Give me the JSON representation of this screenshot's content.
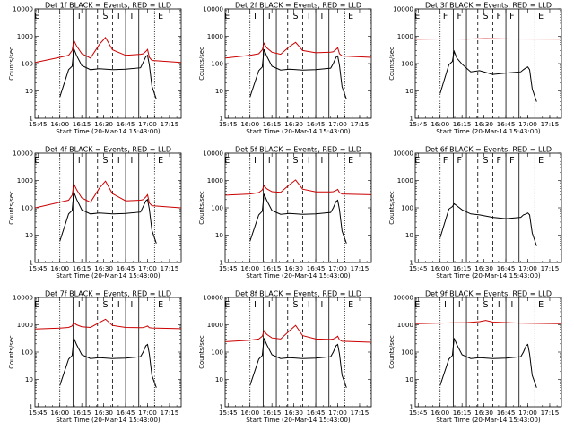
{
  "x_label": "Start Time (20-Mar-14 15:43:00)",
  "y_label": "Counts/sec",
  "x_ticks": [
    "15:45",
    "16:00",
    "16:15",
    "16:30",
    "16:45",
    "17:00",
    "17:15"
  ],
  "y_ticks": [
    "1",
    "10",
    "100",
    "1000",
    "10000"
  ],
  "chart_data": [
    {
      "type": "line",
      "title": "Det 1f BLACK = Events, RED = LLD",
      "flags": [
        "E",
        "I",
        "I",
        "S",
        "I",
        "I",
        "E"
      ],
      "xlim": [
        "15:43",
        "17:23"
      ],
      "ylim": [
        1,
        10000
      ],
      "ylog": true,
      "series": [
        {
          "name": "BLACK = Events",
          "color": "#000000",
          "x": [
            16.0,
            16.1,
            16.14,
            16.16,
            16.19,
            16.25,
            16.35,
            16.45,
            16.6,
            16.75,
            16.92,
            16.95,
            16.98,
            17.0,
            17.02,
            17.05,
            17.1
          ],
          "y": [
            6,
            60,
            80,
            350,
            200,
            85,
            60,
            65,
            60,
            62,
            70,
            110,
            180,
            200,
            90,
            15,
            5
          ]
        },
        {
          "name": "RED = LLD",
          "color": "#cc0000",
          "x": [
            15.72,
            16.0,
            16.1,
            16.14,
            16.16,
            16.19,
            16.25,
            16.35,
            16.45,
            16.52,
            16.6,
            16.75,
            16.92,
            16.95,
            16.98,
            17.0,
            17.02,
            17.05,
            17.38
          ],
          "y": [
            110,
            170,
            200,
            300,
            700,
            450,
            230,
            160,
            500,
            900,
            320,
            200,
            220,
            230,
            280,
            330,
            170,
            130,
            110
          ]
        }
      ]
    },
    {
      "type": "line",
      "title": "Det 2f BLACK = Events, RED = LLD",
      "flags": [
        "E",
        "I",
        "I",
        "S",
        "I",
        "I",
        "E"
      ],
      "xlim": [
        "15:43",
        "17:23"
      ],
      "ylim": [
        1,
        10000
      ],
      "ylog": true,
      "series": [
        {
          "name": "BLACK = Events",
          "color": "#000000",
          "x": [
            16.0,
            16.1,
            16.14,
            16.16,
            16.19,
            16.25,
            16.35,
            16.45,
            16.6,
            16.75,
            16.92,
            16.95,
            16.98,
            17.0,
            17.02,
            17.05,
            17.1
          ],
          "y": [
            6,
            55,
            75,
            330,
            190,
            80,
            58,
            62,
            58,
            60,
            68,
            100,
            170,
            190,
            85,
            14,
            5
          ]
        },
        {
          "name": "RED = LLD",
          "color": "#cc0000",
          "x": [
            15.72,
            16.0,
            16.1,
            16.14,
            16.16,
            16.19,
            16.25,
            16.35,
            16.45,
            16.52,
            16.6,
            16.75,
            16.92,
            16.95,
            16.98,
            17.0,
            17.02,
            17.05,
            17.38
          ],
          "y": [
            160,
            200,
            230,
            320,
            550,
            380,
            260,
            220,
            420,
            600,
            300,
            250,
            260,
            270,
            330,
            380,
            230,
            190,
            170
          ]
        }
      ]
    },
    {
      "type": "line",
      "title": "Det 3f BLACK = Events, RED = LLD",
      "flags": [
        "E",
        "F",
        "F",
        "S",
        "F",
        "F",
        "E"
      ],
      "xlim": [
        "15:43",
        "17:23"
      ],
      "ylim": [
        1,
        10000
      ],
      "ylog": true,
      "series": [
        {
          "name": "BLACK = Events",
          "color": "#000000",
          "x": [
            16.0,
            16.1,
            16.14,
            16.16,
            16.19,
            16.25,
            16.35,
            16.45,
            16.6,
            16.75,
            16.92,
            16.95,
            16.98,
            17.0,
            17.02,
            17.05,
            17.1
          ],
          "y": [
            8,
            90,
            120,
            280,
            160,
            95,
            50,
            55,
            40,
            45,
            50,
            60,
            70,
            75,
            60,
            12,
            4
          ]
        },
        {
          "name": "RED = LLD",
          "color": "#cc0000",
          "x": [
            15.72,
            16.0,
            16.3,
            16.52,
            16.8,
            17.38
          ],
          "y": [
            780,
            800,
            790,
            820,
            800,
            790
          ]
        }
      ]
    },
    {
      "type": "line",
      "title": "Det 4f BLACK = Events, RED = LLD",
      "flags": [
        "E",
        "I",
        "I",
        "S",
        "I",
        "I",
        "E"
      ],
      "xlim": [
        "15:43",
        "17:23"
      ],
      "ylim": [
        1,
        10000
      ],
      "ylog": true,
      "series": [
        {
          "name": "BLACK = Events",
          "color": "#000000",
          "x": [
            16.0,
            16.1,
            16.14,
            16.16,
            16.19,
            16.25,
            16.35,
            16.45,
            16.6,
            16.75,
            16.92,
            16.95,
            16.98,
            17.0,
            17.02,
            17.05,
            17.1
          ],
          "y": [
            6,
            60,
            80,
            380,
            210,
            85,
            60,
            65,
            60,
            62,
            70,
            110,
            180,
            200,
            90,
            15,
            5
          ]
        },
        {
          "name": "RED = LLD",
          "color": "#cc0000",
          "x": [
            15.72,
            16.0,
            16.1,
            16.14,
            16.16,
            16.19,
            16.25,
            16.35,
            16.45,
            16.52,
            16.6,
            16.75,
            16.92,
            16.95,
            16.98,
            17.0,
            17.02,
            17.05,
            17.38
          ],
          "y": [
            100,
            160,
            190,
            290,
            750,
            470,
            230,
            160,
            520,
            950,
            330,
            180,
            190,
            200,
            250,
            300,
            150,
            120,
            100
          ]
        }
      ]
    },
    {
      "type": "line",
      "title": "Det 5f BLACK = Events, RED = LLD",
      "flags": [
        "E",
        "I",
        "I",
        "S",
        "I",
        "I",
        "E"
      ],
      "xlim": [
        "15:43",
        "17:23"
      ],
      "ylim": [
        1,
        10000
      ],
      "ylog": true,
      "series": [
        {
          "name": "BLACK = Events",
          "color": "#000000",
          "x": [
            16.0,
            16.1,
            16.14,
            16.16,
            16.19,
            16.25,
            16.35,
            16.45,
            16.6,
            16.75,
            16.92,
            16.95,
            16.98,
            17.0,
            17.02,
            17.05,
            17.1
          ],
          "y": [
            6,
            55,
            75,
            320,
            190,
            80,
            58,
            62,
            58,
            60,
            68,
            100,
            170,
            190,
            85,
            14,
            5
          ]
        },
        {
          "name": "RED = LLD",
          "color": "#cc0000",
          "x": [
            15.72,
            16.0,
            16.1,
            16.14,
            16.16,
            16.19,
            16.25,
            16.35,
            16.45,
            16.52,
            16.6,
            16.75,
            16.92,
            16.95,
            16.98,
            17.0,
            17.02,
            17.05,
            17.38
          ],
          "y": [
            290,
            320,
            360,
            450,
            650,
            500,
            390,
            370,
            700,
            1050,
            480,
            380,
            380,
            390,
            430,
            470,
            360,
            320,
            300
          ]
        }
      ]
    },
    {
      "type": "line",
      "title": "Det 6f BLACK = Events, RED = LLD",
      "flags": [
        "E",
        "F",
        "F",
        "S",
        "F",
        "F",
        "E"
      ],
      "xlim": [
        "15:43",
        "17:23"
      ],
      "ylim": [
        1,
        10000
      ],
      "ylog": true,
      "series": [
        {
          "name": "BLACK = Events",
          "color": "#000000",
          "x": [
            16.0,
            16.1,
            16.14,
            16.16,
            16.19,
            16.25,
            16.35,
            16.45,
            16.6,
            16.75,
            16.92,
            16.95,
            16.98,
            17.0,
            17.02,
            17.05,
            17.1
          ],
          "y": [
            8,
            90,
            110,
            140,
            120,
            85,
            60,
            55,
            45,
            40,
            45,
            55,
            60,
            65,
            55,
            12,
            4
          ]
        }
      ]
    },
    {
      "type": "line",
      "title": "Det 7f BLACK = Events, RED = LLD",
      "flags": [
        "E",
        "I",
        "I",
        "S",
        "I",
        "I",
        "E"
      ],
      "xlim": [
        "15:43",
        "17:23"
      ],
      "ylim": [
        1,
        10000
      ],
      "ylog": true,
      "series": [
        {
          "name": "BLACK = Events",
          "color": "#000000",
          "x": [
            16.0,
            16.1,
            16.14,
            16.16,
            16.19,
            16.25,
            16.35,
            16.45,
            16.6,
            16.75,
            16.92,
            16.95,
            16.98,
            17.0,
            17.02,
            17.05,
            17.1
          ],
          "y": [
            6,
            55,
            75,
            320,
            190,
            80,
            58,
            62,
            58,
            60,
            68,
            100,
            170,
            190,
            85,
            14,
            5
          ]
        },
        {
          "name": "RED = LLD",
          "color": "#cc0000",
          "x": [
            15.72,
            16.0,
            16.1,
            16.14,
            16.16,
            16.19,
            16.25,
            16.35,
            16.45,
            16.52,
            16.6,
            16.75,
            16.92,
            16.95,
            16.98,
            17.0,
            17.02,
            17.05,
            17.38
          ],
          "y": [
            700,
            750,
            800,
            900,
            1200,
            1000,
            850,
            800,
            1200,
            1600,
            950,
            800,
            780,
            790,
            850,
            900,
            780,
            760,
            720
          ]
        }
      ]
    },
    {
      "type": "line",
      "title": "Det 8f BLACK = Events, RED = LLD",
      "flags": [
        "E",
        "I",
        "I",
        "S",
        "I",
        "I",
        "E"
      ],
      "xlim": [
        "15:43",
        "17:23"
      ],
      "ylim": [
        1,
        10000
      ],
      "ylog": true,
      "series": [
        {
          "name": "BLACK = Events",
          "color": "#000000",
          "x": [
            16.0,
            16.1,
            16.14,
            16.16,
            16.19,
            16.25,
            16.35,
            16.45,
            16.6,
            16.75,
            16.92,
            16.95,
            16.98,
            17.0,
            17.02,
            17.05,
            17.1
          ],
          "y": [
            6,
            55,
            75,
            320,
            190,
            80,
            58,
            62,
            58,
            60,
            68,
            100,
            170,
            190,
            85,
            14,
            5
          ]
        },
        {
          "name": "RED = LLD",
          "color": "#cc0000",
          "x": [
            15.72,
            16.0,
            16.1,
            16.14,
            16.16,
            16.19,
            16.25,
            16.35,
            16.45,
            16.52,
            16.6,
            16.75,
            16.92,
            16.95,
            16.98,
            17.0,
            17.02,
            17.05,
            17.38
          ],
          "y": [
            240,
            270,
            300,
            380,
            600,
            450,
            330,
            300,
            600,
            950,
            400,
            300,
            290,
            300,
            340,
            380,
            280,
            250,
            230
          ]
        }
      ]
    },
    {
      "type": "line",
      "title": "Det 9f BLACK = Events, RED = LLD",
      "flags": [
        "E",
        "I",
        "I",
        "S",
        "I",
        "I",
        "E"
      ],
      "xlim": [
        "15:43",
        "17:23"
      ],
      "ylim": [
        1,
        10000
      ],
      "ylog": true,
      "series": [
        {
          "name": "BLACK = Events",
          "color": "#000000",
          "x": [
            16.0,
            16.1,
            16.14,
            16.16,
            16.19,
            16.25,
            16.35,
            16.45,
            16.6,
            16.75,
            16.92,
            16.95,
            16.98,
            17.0,
            17.02,
            17.05,
            17.1
          ],
          "y": [
            6,
            55,
            75,
            320,
            190,
            80,
            58,
            62,
            58,
            60,
            68,
            100,
            170,
            190,
            85,
            14,
            5
          ]
        },
        {
          "name": "RED = LLD",
          "color": "#cc0000",
          "x": [
            15.72,
            16.0,
            16.3,
            16.45,
            16.52,
            16.6,
            16.9,
            17.38
          ],
          "y": [
            1100,
            1150,
            1200,
            1300,
            1450,
            1250,
            1150,
            1100
          ]
        }
      ]
    }
  ]
}
